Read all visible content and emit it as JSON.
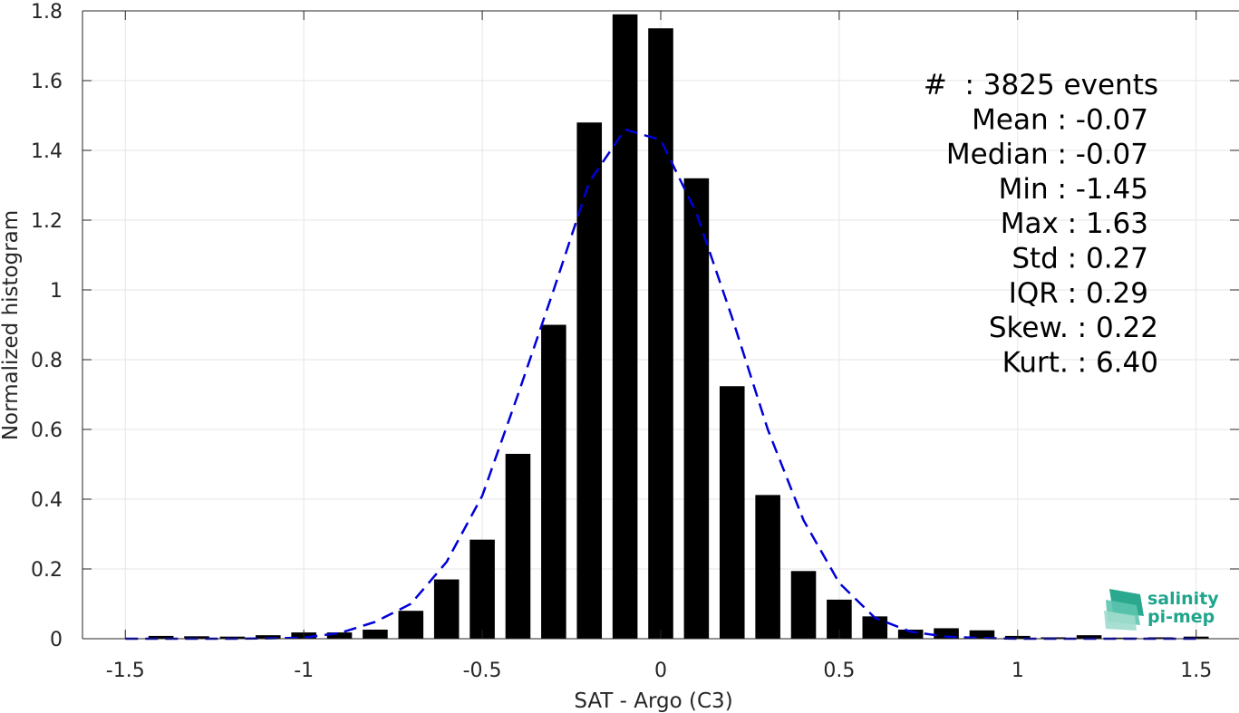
{
  "chart_data": {
    "type": "bar",
    "xlabel": "SAT - Argo (C3)",
    "ylabel": "Normalized histogram",
    "xlim": [
      -1.62,
      1.62
    ],
    "ylim": [
      0,
      1.8
    ],
    "grid": true,
    "x_ticks": [
      -1.5,
      -1,
      -0.5,
      0,
      0.5,
      1,
      1.5
    ],
    "x_tick_labels": [
      "-1.5",
      "-1",
      "-0.5",
      "0",
      "0.5",
      "1",
      "1.5"
    ],
    "y_ticks": [
      0,
      0.2,
      0.4,
      0.6,
      0.8,
      1,
      1.2,
      1.4,
      1.6,
      1.8
    ],
    "y_tick_labels": [
      "0",
      "0.2",
      "0.4",
      "0.6",
      "0.8",
      "1",
      "1.2",
      "1.4",
      "1.6",
      "1.8"
    ],
    "bar_width": 0.07,
    "bars": {
      "color": "#000000",
      "x": [
        -1.4,
        -1.3,
        -1.2,
        -1.1,
        -1.0,
        -0.9,
        -0.8,
        -0.7,
        -0.6,
        -0.5,
        -0.4,
        -0.3,
        -0.2,
        -0.1,
        0.0,
        0.1,
        0.2,
        0.3,
        0.4,
        0.5,
        0.6,
        0.7,
        0.8,
        0.9,
        1.0,
        1.1,
        1.2,
        1.3,
        1.4,
        1.5
      ],
      "values": [
        0.008,
        0.007,
        0.006,
        0.01,
        0.018,
        0.018,
        0.026,
        0.08,
        0.17,
        0.284,
        0.53,
        0.9,
        1.48,
        1.79,
        1.75,
        1.32,
        0.724,
        0.412,
        0.194,
        0.112,
        0.064,
        0.026,
        0.03,
        0.024,
        0.008,
        0.004,
        0.01,
        0.003,
        0.004,
        0.006
      ]
    },
    "fit_curve": {
      "color": "#0000d8",
      "style": "dashed",
      "x": [
        -1.5,
        -1.4,
        -1.3,
        -1.2,
        -1.1,
        -1.0,
        -0.9,
        -0.8,
        -0.7,
        -0.6,
        -0.5,
        -0.4,
        -0.3,
        -0.2,
        -0.1,
        0.0,
        0.1,
        0.2,
        0.3,
        0.4,
        0.5,
        0.6,
        0.7,
        0.8,
        0.9,
        1.0,
        1.1,
        1.2,
        1.3,
        1.4,
        1.5
      ],
      "values": [
        0.0,
        0.0,
        0.0,
        0.0,
        0.001,
        0.003,
        0.016,
        0.048,
        0.1,
        0.22,
        0.41,
        0.7,
        1.0,
        1.31,
        1.46,
        1.43,
        1.22,
        0.92,
        0.6,
        0.34,
        0.16,
        0.06,
        0.02,
        0.006,
        0.002,
        0.0,
        0.0,
        0.0,
        0.0,
        0.0,
        0.0
      ]
    },
    "annotations": [
      "#  : 3825 events",
      "Mean : -0.07",
      "Median : -0.07",
      "Min : -1.45",
      "Max : 1.63",
      "Std : 0.27",
      "IQR : 0.29",
      "Skew. : 0.22",
      "Kurt. : 6.40"
    ]
  },
  "logo": {
    "line1": "salinity",
    "line2": "pi-mep"
  },
  "colors": {
    "axis": "#262626",
    "grid": "#e6e6e6",
    "bar": "#000000",
    "fit": "#0000d8",
    "logo": "#20a58c"
  }
}
